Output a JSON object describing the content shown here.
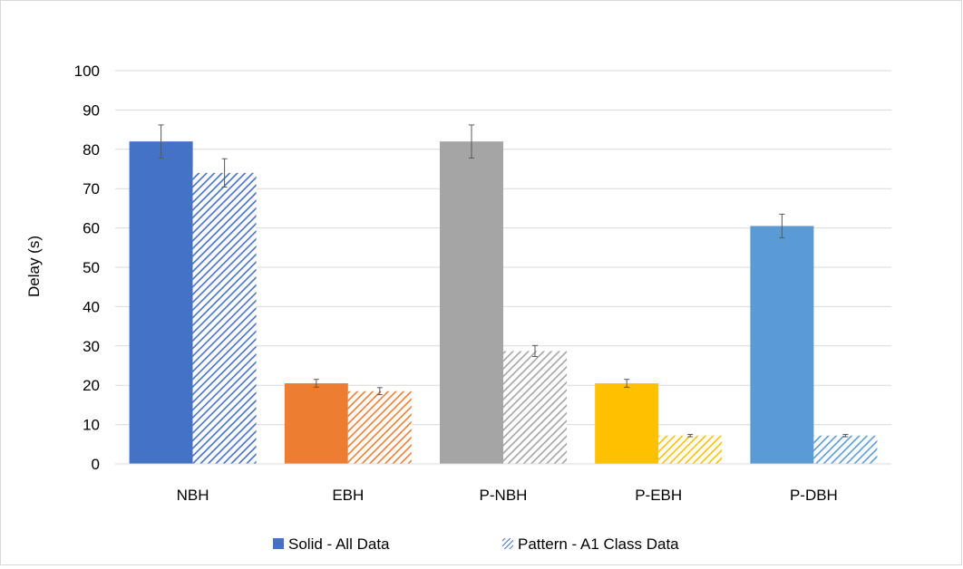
{
  "chart_data": {
    "type": "bar",
    "title": "",
    "xlabel": "",
    "ylabel": "Delay (s)",
    "ylim": [
      0,
      100
    ],
    "yticks": [
      0,
      10,
      20,
      30,
      40,
      50,
      60,
      70,
      80,
      90,
      100
    ],
    "grid": true,
    "legend_placement": "bottom",
    "categories": [
      "NBH",
      "EBH",
      "P-NBH",
      "P-EBH",
      "P-DBH"
    ],
    "category_colors": [
      "#4472C4",
      "#ED7D31",
      "#A5A5A5",
      "#FFC000",
      "#5B9BD5"
    ],
    "series": [
      {
        "name": "Solid - All Data",
        "style": "solid",
        "values": [
          82,
          20.5,
          82,
          20.5,
          60.5
        ],
        "error": [
          4.2,
          1.0,
          4.2,
          1.0,
          3.0
        ]
      },
      {
        "name": "Pattern - A1 Class Data",
        "style": "hatched",
        "values": [
          74,
          18.5,
          28.7,
          7.2,
          7.2
        ],
        "error": [
          3.6,
          0.9,
          1.4,
          0.3,
          0.3
        ]
      }
    ],
    "legend_swatch_color": "#4472C4"
  }
}
